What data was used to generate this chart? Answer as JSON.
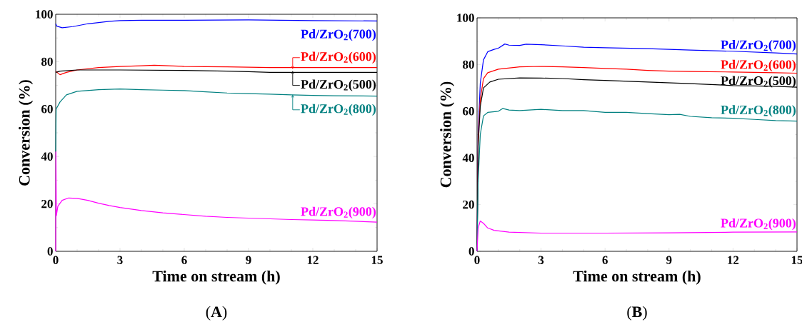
{
  "chart_data": [
    {
      "type": "line",
      "title": "(**A**)",
      "xlabel": "Time on stream (h)",
      "ylabel": "Conversion (%)",
      "xlim": [
        0,
        15
      ],
      "ylim": [
        0,
        100
      ],
      "xticks": [
        0,
        3,
        6,
        9,
        12,
        15
      ],
      "yticks": [
        0,
        20,
        40,
        60,
        80,
        100
      ],
      "grid": false,
      "legend": false,
      "marker": "none",
      "line_style": "solid",
      "series": [
        {
          "name": "Pd/ZrO$_{2}$(700)",
          "color": "#0000ff",
          "x": [
            0,
            0.05,
            0.3,
            0.8,
            1.5,
            2.5,
            3,
            4,
            6,
            9,
            12,
            15
          ],
          "values": [
            96,
            95,
            94.3,
            94.8,
            96,
            97,
            97.3,
            97.5,
            97.5,
            97.6,
            97.3,
            97.2
          ]
        },
        {
          "name": "Pd/ZrO$_{2}$(600)",
          "color": "#ff0000",
          "x": [
            0,
            0.2,
            0.5,
            1,
            2,
            3,
            4,
            4.6,
            6,
            8,
            10,
            12,
            15
          ],
          "values": [
            76,
            74.5,
            75.5,
            76.5,
            77.5,
            78,
            78.3,
            78.5,
            78,
            77.8,
            77.5,
            77.5,
            77.5
          ]
        },
        {
          "name": "Pd/ZrO$_{2}$(500)",
          "color": "#000000",
          "x": [
            0,
            0.2,
            1,
            3,
            6,
            8,
            9,
            10,
            12,
            15
          ],
          "values": [
            75.5,
            76,
            76.5,
            76.5,
            76.3,
            76,
            75.8,
            75.5,
            75.5,
            75.5
          ]
        },
        {
          "name": "Pd/ZrO$_{2}$(800)",
          "color": "#008080",
          "x": [
            0,
            0.02,
            0.2,
            0.5,
            1,
            2,
            3,
            4,
            5,
            6,
            7,
            8,
            9,
            10,
            11,
            12,
            13,
            15
          ],
          "values": [
            42,
            60,
            63,
            66,
            67.5,
            68.2,
            68.5,
            68.2,
            68,
            67.8,
            67.3,
            66.8,
            66.5,
            66.3,
            66,
            65.8,
            65.6,
            65.5
          ]
        },
        {
          "name": "Pd/ZrO$_{2}$(900)",
          "color": "#ff00ff",
          "x": [
            0,
            0.01,
            0.03,
            0.1,
            0.3,
            0.6,
            1,
            1.5,
            2,
            2.5,
            3,
            4,
            5,
            6,
            7,
            8,
            9,
            10,
            11,
            12,
            13,
            14,
            15
          ],
          "values": [
            0,
            42,
            15,
            19,
            21.5,
            22.5,
            22.3,
            21.5,
            20.3,
            19.3,
            18.5,
            17.2,
            16.2,
            15.5,
            14.8,
            14.3,
            14,
            13.7,
            13.4,
            13.2,
            13,
            12.7,
            12.3
          ]
        }
      ]
    },
    {
      "type": "line",
      "title": "(**B**)",
      "xlabel": "Time on stream (h)",
      "ylabel": "Conversion (%)",
      "xlim": [
        0,
        15
      ],
      "ylim": [
        0,
        100
      ],
      "xticks": [
        0,
        3,
        6,
        9,
        12,
        15
      ],
      "yticks": [
        0,
        20,
        40,
        60,
        80,
        100
      ],
      "grid": false,
      "legend": false,
      "marker": "none",
      "line_style": "solid",
      "series": [
        {
          "name": "Pd/ZrO$_{2}$(700)",
          "color": "#0000ff",
          "x": [
            0,
            0.05,
            0.15,
            0.3,
            0.5,
            0.8,
            1,
            1.3,
            1.5,
            2,
            2.3,
            3,
            4,
            5,
            6,
            8,
            9,
            10,
            12,
            14,
            15
          ],
          "values": [
            0,
            50,
            72,
            82,
            85.5,
            86.5,
            87,
            88.8,
            88.3,
            88.2,
            88.7,
            88.5,
            88,
            87.4,
            87.2,
            86.8,
            86.5,
            86.2,
            85.7,
            85,
            84.5
          ]
        },
        {
          "name": "Pd/ZrO$_{2}$(600)",
          "color": "#ff0000",
          "x": [
            0,
            0.05,
            0.15,
            0.3,
            0.5,
            1,
            2,
            3,
            4,
            5,
            6,
            7,
            8,
            9,
            10,
            12,
            14,
            15
          ],
          "values": [
            0,
            48,
            65,
            74,
            76.5,
            78,
            79,
            79.2,
            79,
            78.7,
            78.3,
            78,
            77.5,
            77.2,
            77,
            76.8,
            76.5,
            76.3
          ]
        },
        {
          "name": "Pd/ZrO$_{2}$(500)",
          "color": "#000000",
          "x": [
            0,
            0.05,
            0.15,
            0.3,
            0.6,
            1,
            2,
            3,
            4,
            5,
            6,
            8,
            10,
            12,
            14,
            15
          ],
          "values": [
            0,
            45,
            62,
            70,
            72.5,
            73.7,
            74.3,
            74.2,
            74,
            73.5,
            73.2,
            72.5,
            71.8,
            71,
            70.7,
            70.3
          ]
        },
        {
          "name": "Pd/ZrO$_{2}$(800)",
          "color": "#008080",
          "x": [
            0,
            0.05,
            0.15,
            0.3,
            0.5,
            1,
            1.2,
            1.5,
            2,
            3,
            4,
            5,
            6,
            7,
            8,
            9,
            9.5,
            10,
            11,
            12,
            13,
            14,
            15
          ],
          "values": [
            0,
            30,
            50,
            58,
            59.5,
            60,
            61.2,
            60.5,
            60.3,
            60.8,
            60.3,
            60.3,
            59.5,
            59.5,
            59,
            58.5,
            58.7,
            57.8,
            57.2,
            57,
            56.5,
            56,
            55.8
          ]
        },
        {
          "name": "Pd/ZrO$_{2}$(900)",
          "color": "#ff00ff",
          "x": [
            0,
            0.05,
            0.15,
            0.3,
            0.5,
            0.8,
            1.5,
            3,
            6,
            9,
            12,
            15
          ],
          "values": [
            0,
            10,
            13,
            12,
            10,
            9,
            8.2,
            7.8,
            7.8,
            7.9,
            8.2,
            8.3
          ]
        }
      ]
    }
  ]
}
